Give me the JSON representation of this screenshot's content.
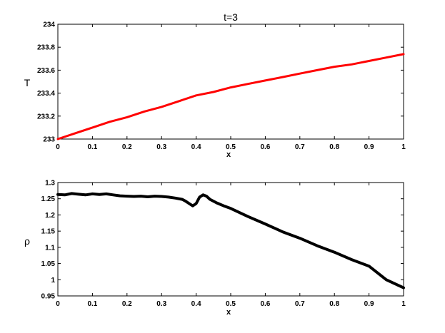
{
  "chart_data": [
    {
      "type": "line",
      "title": "t=3",
      "xlabel": "x",
      "ylabel": "T",
      "xlim": [
        0,
        1
      ],
      "ylim": [
        233,
        234
      ],
      "xticks": [
        "0",
        "0.1",
        "0.2",
        "0.3",
        "0.4",
        "0.5",
        "0.6",
        "0.7",
        "0.8",
        "0.9",
        "1"
      ],
      "yticks": [
        "233",
        "233.2",
        "233.4",
        "233.6",
        "233.8",
        "234"
      ],
      "grid": false,
      "color": "#ff0000",
      "series": [
        {
          "x": [
            0,
            0.05,
            0.1,
            0.15,
            0.2,
            0.25,
            0.3,
            0.35,
            0.4,
            0.45,
            0.5,
            0.55,
            0.6,
            0.65,
            0.7,
            0.75,
            0.8,
            0.85,
            0.9,
            0.95,
            1.0
          ],
          "y": [
            233.0,
            233.05,
            233.1,
            233.15,
            233.19,
            233.24,
            233.28,
            233.33,
            233.38,
            233.41,
            233.45,
            233.48,
            233.51,
            233.54,
            233.57,
            233.6,
            233.63,
            233.65,
            233.68,
            233.71,
            233.74
          ]
        }
      ]
    },
    {
      "type": "line",
      "title": "",
      "xlabel": "x",
      "ylabel": "ρ",
      "xlim": [
        0,
        1
      ],
      "ylim": [
        0.95,
        1.3
      ],
      "xticks": [
        "0",
        "0.1",
        "0.2",
        "0.3",
        "0.4",
        "0.5",
        "0.6",
        "0.7",
        "0.8",
        "0.9",
        "1"
      ],
      "yticks": [
        "0.95",
        "1",
        "1.05",
        "1.1",
        "1.15",
        "1.2",
        "1.25",
        "1.3"
      ],
      "grid": false,
      "color": "#000000",
      "series": [
        {
          "x": [
            0,
            0.02,
            0.04,
            0.06,
            0.08,
            0.1,
            0.12,
            0.14,
            0.16,
            0.18,
            0.2,
            0.22,
            0.24,
            0.26,
            0.28,
            0.3,
            0.32,
            0.34,
            0.36,
            0.37,
            0.38,
            0.39,
            0.4,
            0.41,
            0.42,
            0.43,
            0.44,
            0.46,
            0.48,
            0.5,
            0.55,
            0.6,
            0.65,
            0.7,
            0.75,
            0.8,
            0.85,
            0.9,
            0.95,
            1.0
          ],
          "y": [
            1.263,
            1.262,
            1.266,
            1.264,
            1.262,
            1.265,
            1.263,
            1.265,
            1.262,
            1.259,
            1.258,
            1.257,
            1.258,
            1.256,
            1.258,
            1.257,
            1.255,
            1.252,
            1.248,
            1.242,
            1.235,
            1.228,
            1.235,
            1.255,
            1.262,
            1.258,
            1.248,
            1.237,
            1.228,
            1.22,
            1.195,
            1.172,
            1.148,
            1.128,
            1.105,
            1.085,
            1.062,
            1.042,
            1.0,
            0.975
          ]
        }
      ]
    }
  ]
}
